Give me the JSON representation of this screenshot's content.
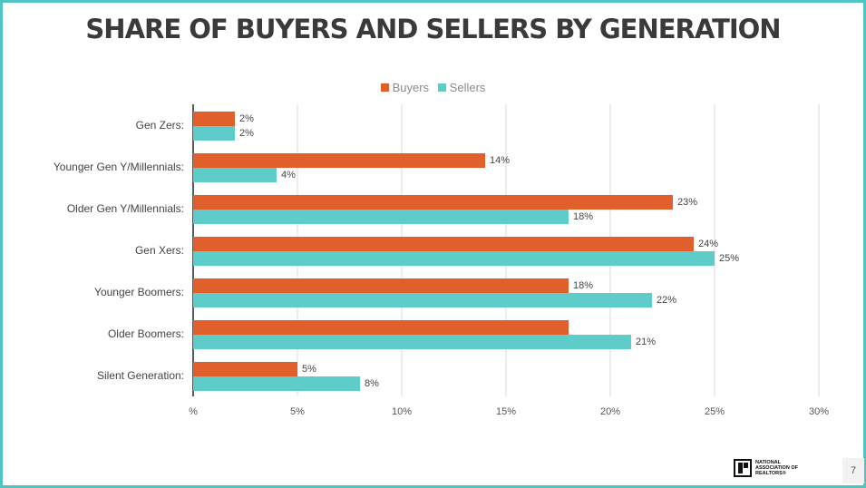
{
  "slide": {
    "title": "SHARE OF BUYERS AND SELLERS BY GENERATION",
    "page_number": "7",
    "logo_text": "NATIONAL ASSOCIATION OF REALTORS®"
  },
  "colors": {
    "buyers": "#e05f2b",
    "sellers": "#5ecdc9",
    "border": "#4fc4c1",
    "grid": "#d9d9d9",
    "axis_text": "#555555"
  },
  "chart_data": {
    "type": "bar",
    "orientation": "horizontal",
    "categories": [
      "Gen Zers:",
      "Younger Gen Y/Millennials:",
      "Older Gen Y/Millennials:",
      "Gen Xers:",
      "Younger Boomers:",
      "Older Boomers:",
      "Silent Generation:"
    ],
    "series": [
      {
        "name": "Buyers",
        "values": [
          2,
          14,
          23,
          24,
          18,
          18,
          5
        ],
        "labels": [
          "2%",
          "14%",
          "23%",
          "24%",
          "18%",
          "",
          "5%"
        ]
      },
      {
        "name": "Sellers",
        "values": [
          2,
          4,
          18,
          25,
          22,
          21,
          8
        ],
        "labels": [
          "2%",
          "4%",
          "18%",
          "25%",
          "22%",
          "21%",
          "8%"
        ]
      }
    ],
    "xlim": [
      0,
      30
    ],
    "xticks": [
      0,
      5,
      10,
      15,
      20,
      25,
      30
    ],
    "xtick_labels": [
      "%",
      "5%",
      "10%",
      "15%",
      "20%",
      "25%",
      "30%"
    ],
    "grid": true,
    "legend_position": "top-center"
  }
}
